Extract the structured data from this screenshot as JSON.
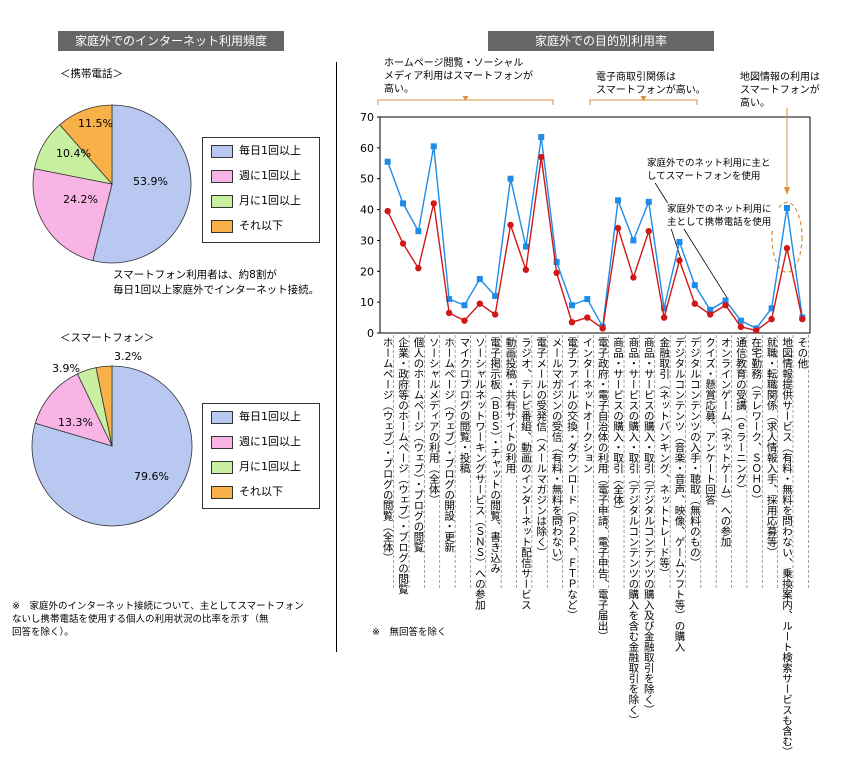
{
  "left_title": "家庭外でのインターネット利用頻度",
  "right_title": "家庭外での目的別利用率",
  "mobile_label": "＜携帯電話＞",
  "smartphone_label": "＜スマートフォン＞",
  "mid_note_line1": "スマートフォン利用者は、約8割が",
  "mid_note_line2": "毎日1回以上家庭外でインターネット接続。",
  "footnote_left": "※　家庭外のインターネット接続について、主としてスマートフォン\nないし携帯電話を使用する個人の利用状況の比率を示す（無\n回答を除く）。",
  "footnote_right": "※　無回答を除く",
  "annotations": {
    "a1": "ホームページ閲覧・ソーシャル\nメディア利用はスマートフォンが\n高い。",
    "a2": "電子商取引関係は\nスマートフォンが高い。",
    "a3": "地図情報の利用は\nスマートフォンが\n高い。"
  },
  "colors": {
    "daily": "#b8c8f0",
    "weekly": "#f8b4e4",
    "monthly": "#c8f0a0",
    "less": "#f8b048",
    "smartphone_line": "#1e8ce8",
    "mobile_line": "#d01818",
    "oval": "#d89040",
    "header_bg": "#666666"
  },
  "chart_data": [
    {
      "type": "pie",
      "title": "＜携帯電話＞",
      "categories": [
        "毎日1回以上",
        "週に1回以上",
        "月に1回以上",
        "それ以下"
      ],
      "values": [
        53.9,
        24.2,
        10.4,
        11.5
      ],
      "value_labels": [
        "53.9%",
        "24.2%",
        "10.4%",
        "11.5%"
      ]
    },
    {
      "type": "pie",
      "title": "＜スマートフォン＞",
      "categories": [
        "毎日1回以上",
        "週に1回以上",
        "月に1回以上",
        "それ以下"
      ],
      "values": [
        79.6,
        13.3,
        3.9,
        3.2
      ],
      "value_labels": [
        "79.6%",
        "13.3%",
        "3.9%",
        "3.2%"
      ]
    },
    {
      "type": "line",
      "title": "家庭外での目的別利用率",
      "ylim": [
        0,
        70
      ],
      "yticks": [
        0,
        10,
        20,
        30,
        40,
        50,
        60,
        70
      ],
      "categories": [
        "ホームページ（ウェブ）・ブログの閲覧（全体）",
        "企業・政府等のホームページ（ウェブ）・ブログの閲覧",
        "個人のホームページ（ウェブ）・ブログの閲覧",
        "ソーシャルメディアの利用（全体）",
        "ホームページ（ウェブ）・ブログの開設・更新",
        "マイクロブログの閲覧・投稿",
        "ソーシャルネットワーキングサービス（ＳＮＳ）への参加",
        "電子掲示板（ＢＢＳ）・チャットの閲覧、書き込み",
        "動画投稿・共有サイトの利用",
        "ラジオ、テレビ番組、動画のインターネット配信サービス",
        "電子メールの受発信（メールマガジンは除く）",
        "メールマガジンの受信（有料・無料を問わない）",
        "電子ファイルの交換・ダウンロード（Ｐ２Ｐ、ＦＴＰなど）",
        "インターネットオークション",
        "電子政府・電子自治体の利用（電子申請、電子申告、電子届出）",
        "商品・サービスの購入・取引（全体）",
        "商品・サービスの購入・取引（デジタルコンテンツの購入を含む金融取引を除く）",
        "商品・サービスの購入・取引（デジタルコンテンツの購入及び金融取引を除く）",
        "金融取引（ネットバンキング、ネットトレード等）",
        "デジタルコンテンツ（音楽・音声、映像、ゲームソフト等）の購入",
        "デジタルコンテンツの入手・聴取（無料のもの）",
        "クイズ・懸賞応募、アンケート回答",
        "オンラインゲーム（ネットゲーム）への参加",
        "通信教育の受講（ｅラーニング）",
        "在宅勤務（テレワーク、ＳＯＨＯ）",
        "就職・転職関係（求人情報入手、採用応募等）",
        "地図情報提供サービス（有料・無料を問わない、乗換案内、ルート検索サービスも含む）",
        "その他"
      ],
      "series": [
        {
          "name": "家庭外でのネット利用に主としてスマートフォンを使用",
          "values": [
            55.5,
            42,
            33,
            60.5,
            11,
            9,
            17.5,
            12,
            50,
            28,
            63.5,
            23,
            9,
            11,
            2,
            43,
            30,
            42.5,
            8,
            29.5,
            15.5,
            7.5,
            10.5,
            4,
            1.5,
            8,
            40.5,
            5
          ]
        },
        {
          "name": "家庭外でのネット利用に主として携帯電話を使用",
          "values": [
            39.5,
            29,
            21,
            42,
            6.5,
            4,
            9.5,
            6,
            35,
            20.5,
            57,
            19.5,
            3.5,
            5,
            1.5,
            34,
            18,
            33,
            5,
            23.5,
            9.5,
            6,
            9,
            2,
            0.8,
            4.5,
            27.5,
            4.5
          ]
        }
      ]
    }
  ]
}
